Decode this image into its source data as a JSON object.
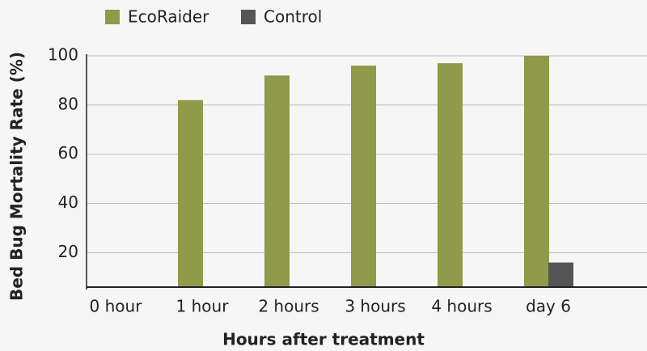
{
  "chart_data": {
    "type": "bar",
    "x_label": "Hours after treatment",
    "y_label": "Bed Bug Mortality Rate (%)",
    "categories": [
      "0 hour",
      "1 hour",
      "2 hours",
      "3 hours",
      "4 hours",
      "day 6"
    ],
    "series": [
      {
        "name": "EcoRaider",
        "color": "#8f9a4a",
        "values": [
          0,
          82,
          92,
          96,
          97,
          100
        ]
      },
      {
        "name": "Control",
        "color": "#555555",
        "values": [
          0,
          0,
          0,
          0,
          0,
          16
        ]
      }
    ],
    "ylim": [
      6,
      100
    ],
    "yticks": [
      20,
      40,
      60,
      80,
      100
    ],
    "grid": true
  }
}
